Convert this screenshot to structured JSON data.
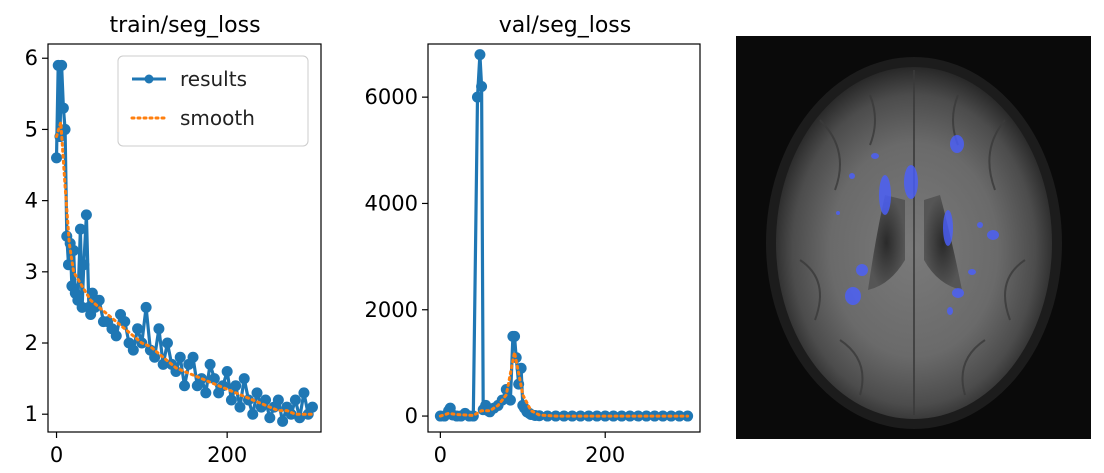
{
  "colors": {
    "results": "#1f77b4",
    "smooth": "#ff7f0e",
    "mask_overlay": "#4a5fff"
  },
  "chart_data": [
    {
      "type": "line",
      "title": "train/seg_loss",
      "xlabel": "",
      "ylabel": "",
      "xlim": [
        -10,
        310
      ],
      "ylim": [
        0.75,
        6.2
      ],
      "xticks": [
        0,
        200
      ],
      "yticks": [
        1,
        2,
        3,
        4,
        5,
        6
      ],
      "legend_position": "top-right",
      "legend": [
        "results",
        "smooth"
      ],
      "series": [
        {
          "name": "results",
          "style": "line-with-markers",
          "x": [
            0,
            2,
            4,
            6,
            8,
            10,
            12,
            14,
            16,
            18,
            20,
            22,
            25,
            28,
            30,
            32,
            35,
            38,
            40,
            42,
            45,
            50,
            55,
            60,
            65,
            70,
            75,
            80,
            85,
            90,
            95,
            100,
            105,
            110,
            115,
            120,
            125,
            130,
            135,
            140,
            145,
            150,
            155,
            160,
            165,
            170,
            175,
            180,
            185,
            190,
            195,
            200,
            205,
            210,
            215,
            220,
            225,
            230,
            235,
            240,
            245,
            250,
            255,
            260,
            265,
            270,
            275,
            280,
            285,
            290,
            295,
            300
          ],
          "values": [
            4.6,
            5.9,
            4.9,
            5.9,
            5.3,
            5.0,
            3.5,
            3.1,
            3.4,
            2.8,
            3.3,
            2.7,
            2.6,
            3.6,
            2.5,
            3.1,
            3.8,
            2.5,
            2.4,
            2.7,
            2.5,
            2.6,
            2.3,
            2.3,
            2.2,
            2.1,
            2.4,
            2.3,
            2.0,
            1.9,
            2.2,
            2.0,
            2.5,
            1.9,
            1.8,
            2.2,
            1.7,
            2.0,
            1.7,
            1.6,
            1.8,
            1.4,
            1.7,
            1.8,
            1.4,
            1.5,
            1.3,
            1.7,
            1.5,
            1.3,
            1.4,
            1.6,
            1.2,
            1.4,
            1.1,
            1.5,
            1.2,
            1.0,
            1.3,
            1.1,
            1.2,
            0.95,
            1.1,
            1.2,
            0.9,
            1.1,
            1.0,
            1.2,
            0.95,
            1.3,
            1.0,
            1.1
          ]
        },
        {
          "name": "smooth",
          "style": "dotted",
          "x": [
            0,
            5,
            10,
            15,
            20,
            30,
            40,
            50,
            60,
            70,
            80,
            90,
            100,
            110,
            120,
            130,
            140,
            150,
            160,
            170,
            180,
            190,
            200,
            210,
            220,
            230,
            240,
            250,
            260,
            270,
            280,
            290,
            300
          ],
          "values": [
            4.9,
            5.1,
            4.2,
            3.4,
            3.0,
            2.8,
            2.6,
            2.5,
            2.4,
            2.3,
            2.2,
            2.1,
            2.0,
            1.95,
            1.85,
            1.75,
            1.65,
            1.6,
            1.55,
            1.5,
            1.45,
            1.4,
            1.35,
            1.3,
            1.25,
            1.2,
            1.15,
            1.1,
            1.05,
            1.05,
            1.0,
            1.0,
            1.0
          ]
        }
      ]
    },
    {
      "type": "line",
      "title": "val/seg_loss",
      "xlabel": "",
      "ylabel": "",
      "xlim": [
        -15,
        315
      ],
      "ylim": [
        -300,
        7000
      ],
      "xticks": [
        0,
        200
      ],
      "yticks": [
        0,
        2000,
        4000,
        6000
      ],
      "series": [
        {
          "name": "results",
          "style": "line-with-markers",
          "x": [
            0,
            5,
            10,
            12,
            15,
            20,
            25,
            30,
            35,
            40,
            45,
            48,
            50,
            52,
            55,
            58,
            60,
            65,
            70,
            75,
            80,
            85,
            88,
            90,
            92,
            95,
            98,
            100,
            102,
            105,
            108,
            110,
            115,
            120,
            130,
            140,
            150,
            160,
            170,
            180,
            190,
            200,
            210,
            220,
            230,
            240,
            250,
            260,
            270,
            280,
            290,
            300
          ],
          "values": [
            0,
            0,
            100,
            150,
            20,
            0,
            0,
            50,
            0,
            0,
            6000,
            6800,
            6200,
            120,
            200,
            100,
            80,
            150,
            200,
            300,
            500,
            300,
            1500,
            1500,
            1100,
            600,
            900,
            200,
            150,
            80,
            50,
            30,
            10,
            5,
            0,
            0,
            0,
            0,
            0,
            0,
            0,
            0,
            0,
            0,
            0,
            0,
            0,
            0,
            0,
            0,
            0,
            0
          ]
        },
        {
          "name": "smooth",
          "style": "dotted",
          "x": [
            0,
            10,
            20,
            30,
            40,
            50,
            55,
            60,
            70,
            80,
            90,
            95,
            100,
            110,
            120,
            140,
            160,
            180,
            200,
            220,
            240,
            260,
            280,
            300
          ],
          "values": [
            0,
            50,
            30,
            20,
            10,
            100,
            100,
            100,
            200,
            400,
            1200,
            800,
            400,
            100,
            20,
            0,
            0,
            0,
            0,
            0,
            0,
            0,
            0,
            0
          ]
        }
      ]
    }
  ]
}
